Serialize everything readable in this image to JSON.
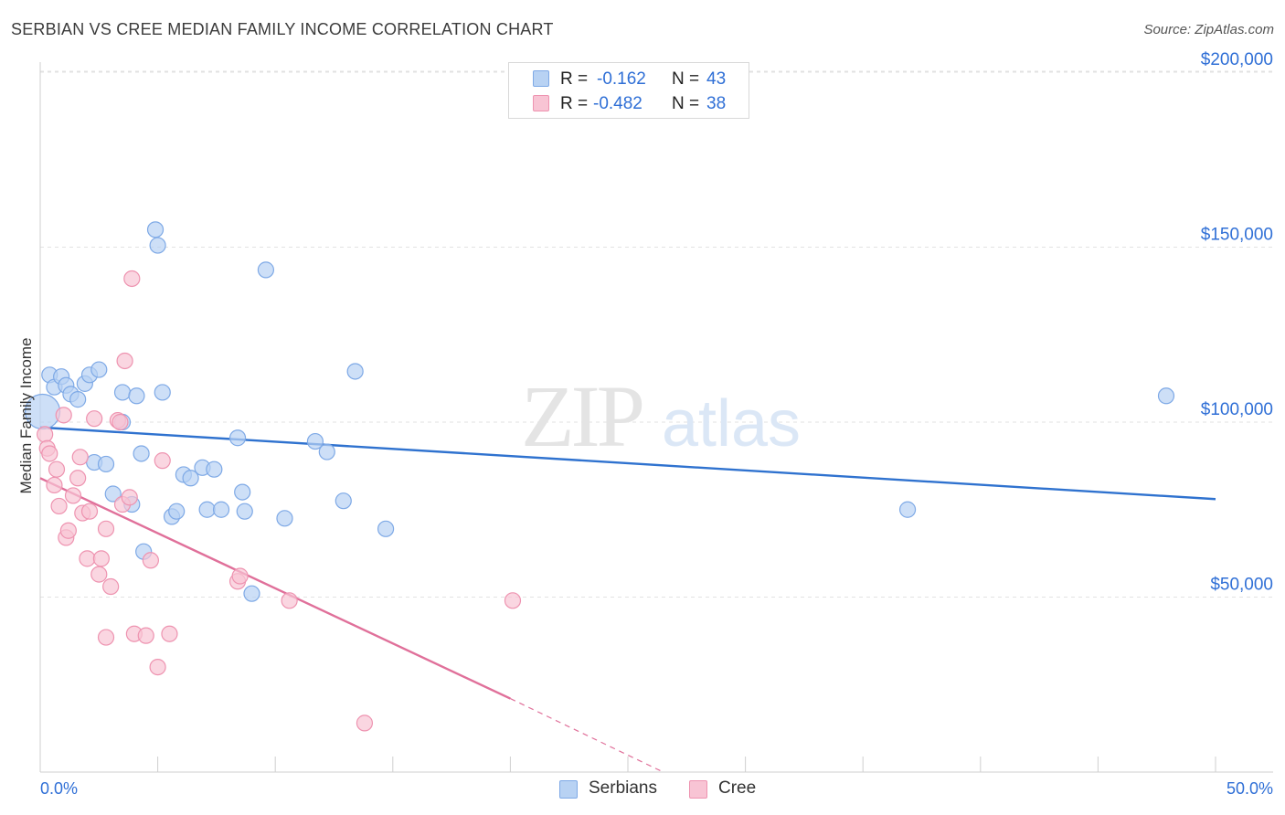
{
  "title": "SERBIAN VS CREE MEDIAN FAMILY INCOME CORRELATION CHART",
  "source": "Source: ZipAtlas.com",
  "watermark": {
    "zip": "ZIP",
    "atlas": "atlas"
  },
  "colors": {
    "blue_fill": "#b8d2f3",
    "blue_stroke": "#7ea9e6",
    "blue_line": "#2f72cf",
    "pink_fill": "#f8c4d4",
    "pink_stroke": "#ee93b0",
    "pink_line": "#e0709a",
    "axis_text": "#2f6fd6",
    "grid": "#e2e2e2"
  },
  "legend": {
    "serbians": {
      "r_label": "R =",
      "r_value": "-0.162",
      "n_label": "N =",
      "n_value": "43"
    },
    "cree": {
      "r_label": "R =",
      "r_value": "-0.482",
      "n_label": "N =",
      "n_value": "38"
    }
  },
  "bottom_legend": {
    "serbians": "Serbians",
    "cree": "Cree"
  },
  "chart_data": {
    "type": "scatter",
    "title": "SERBIAN VS CREE MEDIAN FAMILY INCOME CORRELATION CHART",
    "xlabel": "",
    "ylabel": "Median Family Income",
    "xlim": [
      0,
      50
    ],
    "ylim": [
      0,
      210000
    ],
    "x_tick_labels": [
      "0.0%",
      "50.0%"
    ],
    "y_ticks": [
      50000,
      100000,
      150000,
      200000
    ],
    "y_tick_labels": [
      "$50,000",
      "$100,000",
      "$150,000",
      "$200,000"
    ],
    "legend_position": "top-center",
    "series": [
      {
        "name": "Serbians",
        "r": -0.162,
        "n": 43,
        "trend": {
          "x": [
            0,
            50
          ],
          "y": [
            98500,
            78000
          ]
        },
        "points": [
          [
            0.1,
            103000
          ],
          [
            0.4,
            113500
          ],
          [
            0.6,
            110000
          ],
          [
            0.9,
            113000
          ],
          [
            1.1,
            110500
          ],
          [
            1.3,
            108000
          ],
          [
            1.6,
            106500
          ],
          [
            1.9,
            111000
          ],
          [
            2.1,
            113500
          ],
          [
            2.3,
            88500
          ],
          [
            2.5,
            115000
          ],
          [
            2.8,
            88000
          ],
          [
            3.1,
            79500
          ],
          [
            3.5,
            100000
          ],
          [
            3.5,
            108500
          ],
          [
            3.9,
            76500
          ],
          [
            4.1,
            107500
          ],
          [
            4.3,
            91000
          ],
          [
            4.4,
            63000
          ],
          [
            4.9,
            155000
          ],
          [
            5.0,
            150500
          ],
          [
            5.2,
            108500
          ],
          [
            5.6,
            73000
          ],
          [
            5.8,
            74500
          ],
          [
            6.1,
            85000
          ],
          [
            6.4,
            84000
          ],
          [
            6.9,
            87000
          ],
          [
            7.1,
            75000
          ],
          [
            7.4,
            86500
          ],
          [
            7.7,
            75000
          ],
          [
            8.4,
            95500
          ],
          [
            8.6,
            80000
          ],
          [
            8.7,
            74500
          ],
          [
            9.0,
            51000
          ],
          [
            9.6,
            143500
          ],
          [
            10.4,
            72500
          ],
          [
            11.7,
            94500
          ],
          [
            12.2,
            91500
          ],
          [
            12.9,
            77500
          ],
          [
            13.4,
            114500
          ],
          [
            14.7,
            69500
          ],
          [
            36.9,
            75000
          ],
          [
            47.9,
            107500
          ]
        ]
      },
      {
        "name": "Cree",
        "r": -0.482,
        "n": 38,
        "trend": {
          "x": [
            0,
            20
          ],
          "y": [
            84000,
            21000
          ]
        },
        "trend_dashed": {
          "x": [
            20,
            26.5
          ],
          "y": [
            21000,
            0
          ]
        },
        "points": [
          [
            0.2,
            96500
          ],
          [
            0.3,
            92500
          ],
          [
            0.4,
            91000
          ],
          [
            0.6,
            82000
          ],
          [
            0.7,
            86500
          ],
          [
            0.8,
            76000
          ],
          [
            1.0,
            102000
          ],
          [
            1.1,
            67000
          ],
          [
            1.2,
            69000
          ],
          [
            1.4,
            79000
          ],
          [
            1.6,
            84000
          ],
          [
            1.7,
            90000
          ],
          [
            1.8,
            74000
          ],
          [
            2.0,
            61000
          ],
          [
            2.1,
            74500
          ],
          [
            2.3,
            101000
          ],
          [
            2.5,
            56500
          ],
          [
            2.6,
            61000
          ],
          [
            2.8,
            69500
          ],
          [
            2.8,
            38500
          ],
          [
            3.0,
            53000
          ],
          [
            3.3,
            100500
          ],
          [
            3.4,
            100000
          ],
          [
            3.5,
            76500
          ],
          [
            3.6,
            117500
          ],
          [
            3.8,
            78500
          ],
          [
            3.9,
            141000
          ],
          [
            4.0,
            39500
          ],
          [
            4.5,
            39000
          ],
          [
            4.7,
            60500
          ],
          [
            5.0,
            30000
          ],
          [
            5.2,
            89000
          ],
          [
            5.5,
            39500
          ],
          [
            8.4,
            54500
          ],
          [
            8.5,
            56000
          ],
          [
            10.6,
            49000
          ],
          [
            13.8,
            14000
          ],
          [
            20.1,
            49000
          ]
        ]
      }
    ]
  }
}
